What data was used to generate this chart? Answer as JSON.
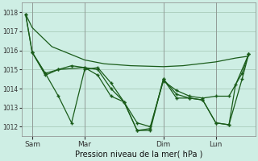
{
  "background_color": "#ceeee4",
  "grid_color": "#aaccbb",
  "line_color": "#1a5c1a",
  "title": "Pression niveau de la mer( hPa )",
  "x_tick_labels": [
    "Sam",
    "Mar",
    "Dim",
    "Lun"
  ],
  "x_tick_positions": [
    0.5,
    4.5,
    10.5,
    14.5
  ],
  "ylim": [
    1011.5,
    1018.5
  ],
  "yticks": [
    1012,
    1013,
    1014,
    1015,
    1016,
    1017,
    1018
  ],
  "xlim": [
    -0.3,
    17.5
  ],
  "vlines": [
    0.5,
    4.5,
    10.5,
    14.5
  ],
  "line1_x": [
    0,
    0.5,
    2,
    4.5,
    6,
    8,
    10.5,
    12,
    14.5,
    16,
    17
  ],
  "line1_y": [
    1017.9,
    1017.2,
    1016.2,
    1015.5,
    1015.3,
    1015.2,
    1015.15,
    1015.2,
    1015.4,
    1015.6,
    1015.7
  ],
  "line2_x": [
    0,
    0.5,
    1.5,
    2.5,
    3.5,
    4.5,
    5.5,
    6.5,
    7.5,
    8.5,
    9.5,
    10.5,
    11.5,
    12.5,
    13.5,
    14.5,
    15.5,
    16.5,
    17
  ],
  "line2_y": [
    1017.9,
    1015.9,
    1014.8,
    1013.6,
    1012.2,
    1015.0,
    1015.1,
    1014.3,
    1013.3,
    1011.8,
    1011.9,
    1014.5,
    1013.5,
    1013.5,
    1013.4,
    1012.2,
    1012.1,
    1014.5,
    1015.8
  ],
  "line3_x": [
    0.5,
    1.5,
    2.5,
    3.5,
    4.5,
    5.5,
    6.5,
    7.5,
    8.5,
    9.5,
    10.5,
    11.5,
    12.5,
    13.5,
    14.5,
    15.5,
    16.5,
    17
  ],
  "line3_y": [
    1015.9,
    1014.7,
    1015.0,
    1015.2,
    1015.1,
    1014.7,
    1013.6,
    1013.3,
    1012.2,
    1012.0,
    1014.4,
    1013.9,
    1013.6,
    1013.5,
    1013.6,
    1013.6,
    1014.8,
    1015.8
  ],
  "line4_x": [
    0,
    0.5,
    1.5,
    2.5,
    4.5,
    5.5,
    6.5,
    7.5,
    8.5,
    9.5,
    10.5,
    11.5,
    12.5,
    13.5,
    14.5,
    15.5,
    16,
    17
  ],
  "line4_y": [
    1017.9,
    1015.9,
    1014.8,
    1015.0,
    1015.1,
    1015.0,
    1014.0,
    1013.3,
    1011.8,
    1011.8,
    1014.5,
    1013.7,
    1013.5,
    1013.4,
    1012.2,
    1012.1,
    1014.2,
    1015.8
  ]
}
